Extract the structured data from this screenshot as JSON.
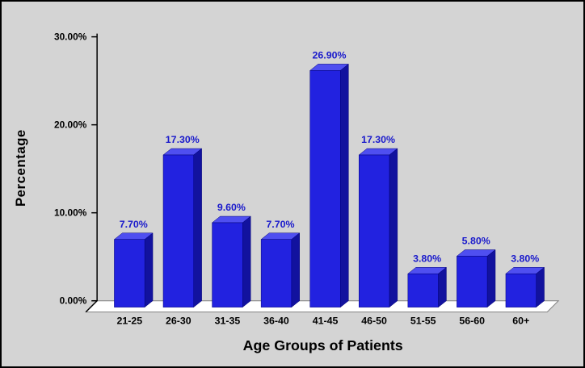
{
  "chart_data": {
    "type": "bar",
    "title": "",
    "xlabel": "Age Groups of Patients",
    "ylabel": "Percentage",
    "categories": [
      "21-25",
      "26-30",
      "31-35",
      "36-40",
      "41-45",
      "46-50",
      "51-55",
      "56-60",
      "60+"
    ],
    "values": [
      7.7,
      17.3,
      9.6,
      7.7,
      26.9,
      17.3,
      3.8,
      5.8,
      3.8
    ],
    "value_labels": [
      "7.70%",
      "17.30%",
      "9.60%",
      "7.70%",
      "26.90%",
      "17.30%",
      "3.80%",
      "5.80%",
      "3.80%"
    ],
    "ylim": [
      0,
      30
    ],
    "yticks": {
      "values": [
        0,
        10,
        20,
        30
      ],
      "labels": [
        "0.00%",
        "10.00%",
        "20.00%",
        "30.00%"
      ]
    },
    "grid": "off",
    "legend": "none",
    "style": "3d-column",
    "colors": {
      "background": "#d4d4d4",
      "floor": "#ffffff",
      "axis": "#000000",
      "bar_front": "#2222e0",
      "bar_top": "#4f4ff0",
      "bar_side": "#12129e",
      "value_label": "#1a1acc"
    }
  }
}
